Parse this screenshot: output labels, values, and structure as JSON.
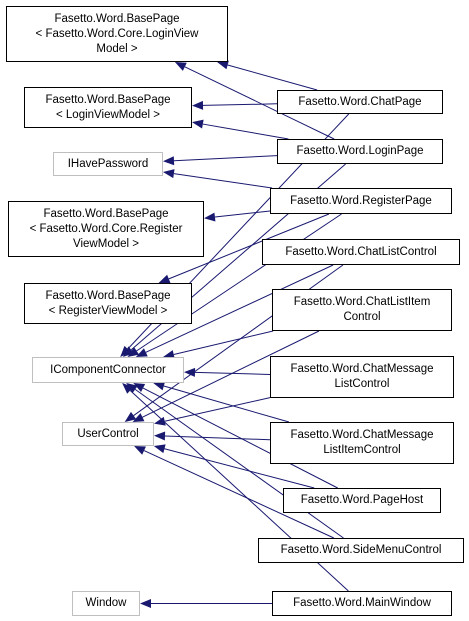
{
  "colors": {
    "edge": "#191970",
    "node_border": "#000000",
    "external_node_border": "#bfbfbf",
    "background": "#ffffff"
  },
  "nodes": {
    "basepage_core_login": [
      "Fasetto.Word.BasePage",
      "< Fasetto.Word.Core.LoginView",
      "Model >"
    ],
    "basepage_login": [
      "Fasetto.Word.BasePage",
      "< LoginViewModel >"
    ],
    "ihavepassword": [
      "IHavePassword"
    ],
    "basepage_core_register": [
      "Fasetto.Word.BasePage",
      "< Fasetto.Word.Core.Register",
      "ViewModel >"
    ],
    "basepage_register": [
      "Fasetto.Word.BasePage",
      "< RegisterViewModel >"
    ],
    "icomponentconnector": [
      "IComponentConnector"
    ],
    "usercontrol": [
      "UserControl"
    ],
    "window": [
      "Window"
    ],
    "chatpage": [
      "Fasetto.Word.ChatPage"
    ],
    "loginpage": [
      "Fasetto.Word.LoginPage"
    ],
    "registerpage": [
      "Fasetto.Word.RegisterPage"
    ],
    "chatlistcontrol": [
      "Fasetto.Word.ChatListControl"
    ],
    "chatlistitemcontrol": [
      "Fasetto.Word.ChatListItem",
      "Control"
    ],
    "chatmessagelistcontrol": [
      "Fasetto.Word.ChatMessage",
      "ListControl"
    ],
    "chatmessagelistitemcontrol": [
      "Fasetto.Word.ChatMessage",
      "ListItemControl"
    ],
    "pagehost": [
      "Fasetto.Word.PageHost"
    ],
    "sidemenucontrol": [
      "Fasetto.Word.SideMenuControl"
    ],
    "mainwindow": [
      "Fasetto.Word.MainWindow"
    ]
  },
  "edges": [
    {
      "from": "chatpage",
      "to": "basepage_core_login"
    },
    {
      "from": "chatpage",
      "to": "basepage_login"
    },
    {
      "from": "chatpage",
      "to": "icomponentconnector"
    },
    {
      "from": "loginpage",
      "to": "basepage_core_login"
    },
    {
      "from": "loginpage",
      "to": "basepage_login"
    },
    {
      "from": "loginpage",
      "to": "ihavepassword"
    },
    {
      "from": "loginpage",
      "to": "icomponentconnector"
    },
    {
      "from": "registerpage",
      "to": "ihavepassword"
    },
    {
      "from": "registerpage",
      "to": "basepage_core_register"
    },
    {
      "from": "registerpage",
      "to": "basepage_register"
    },
    {
      "from": "registerpage",
      "to": "icomponentconnector"
    },
    {
      "from": "chatlistcontrol",
      "to": "icomponentconnector"
    },
    {
      "from": "chatlistcontrol",
      "to": "usercontrol"
    },
    {
      "from": "chatlistitemcontrol",
      "to": "icomponentconnector"
    },
    {
      "from": "chatlistitemcontrol",
      "to": "usercontrol"
    },
    {
      "from": "chatmessagelistcontrol",
      "to": "icomponentconnector"
    },
    {
      "from": "chatmessagelistcontrol",
      "to": "usercontrol"
    },
    {
      "from": "chatmessagelistitemcontrol",
      "to": "icomponentconnector"
    },
    {
      "from": "chatmessagelistitemcontrol",
      "to": "usercontrol"
    },
    {
      "from": "pagehost",
      "to": "icomponentconnector"
    },
    {
      "from": "pagehost",
      "to": "usercontrol"
    },
    {
      "from": "sidemenucontrol",
      "to": "icomponentconnector"
    },
    {
      "from": "sidemenucontrol",
      "to": "usercontrol"
    },
    {
      "from": "mainwindow",
      "to": "icomponentconnector"
    },
    {
      "from": "mainwindow",
      "to": "window"
    }
  ]
}
